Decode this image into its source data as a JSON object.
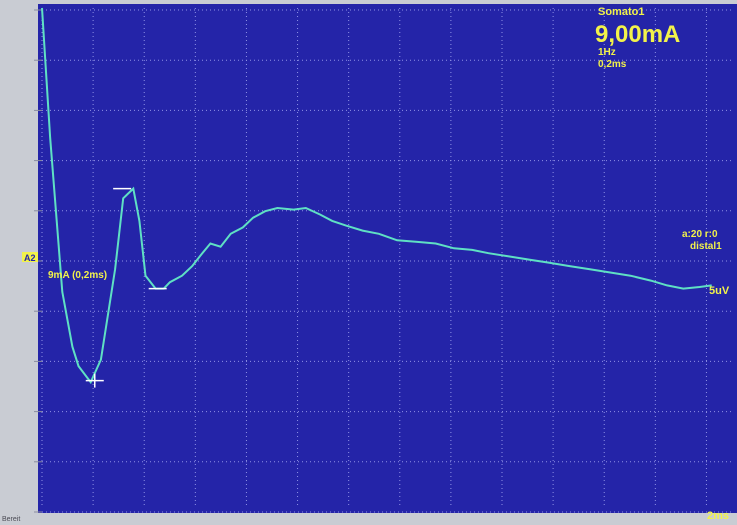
{
  "colors": {
    "bezel": "#c9ccd3",
    "plot_bg": "#2424a8",
    "grid": "#8f92e6",
    "trace": "#5fe0c4",
    "text": "#f2f24a",
    "status_text": "#4b4b55"
  },
  "header": {
    "mode": "Somato1",
    "intensity": "9,00mA",
    "rate": "1Hz",
    "duration": "0,2ms"
  },
  "channel": {
    "tag": "A2",
    "label": "9mA (0,2ms)",
    "averages": "a:20 r:0",
    "site": "distal1",
    "sensitivity": "5uV"
  },
  "timebase": "2ms",
  "status": "Bereit",
  "chart_data": {
    "type": "line",
    "title": "",
    "xlabel": "",
    "ylabel": "",
    "xlim": [
      0,
      34
    ],
    "ylim": [
      -7.5,
      8
    ],
    "grid": true,
    "x": [
      0,
      0.4,
      1.0,
      1.5,
      1.8,
      2.4,
      2.9,
      3.6,
      4.0,
      4.5,
      4.8,
      5.1,
      5.6,
      6.0,
      6.3,
      6.9,
      7.4,
      7.9,
      8.3,
      8.8,
      9.3,
      9.9,
      10.4,
      11.0,
      11.6,
      12.4,
      13.0,
      13.7,
      14.3,
      15.0,
      15.8,
      16.6,
      17.5,
      18.5,
      19.4,
      20.3,
      21.2,
      22.0,
      23.0,
      24.0,
      25.0,
      26.0,
      27.0,
      28.0,
      29.0,
      30.0,
      30.8,
      31.6,
      32.4,
      33.0
    ],
    "y": [
      8,
      4.0,
      -0.8,
      -2.5,
      -3.1,
      -3.6,
      -2.9,
      -0.1,
      2.1,
      2.4,
      1.4,
      -0.3,
      -0.7,
      -0.7,
      -0.5,
      -0.3,
      0.0,
      0.4,
      0.7,
      0.6,
      1.0,
      1.2,
      1.5,
      1.7,
      1.8,
      1.75,
      1.8,
      1.6,
      1.4,
      1.25,
      1.1,
      1.0,
      0.8,
      0.75,
      0.7,
      0.55,
      0.5,
      0.4,
      0.3,
      0.2,
      0.1,
      0.0,
      -0.1,
      -0.2,
      -0.3,
      -0.45,
      -0.6,
      -0.7,
      -0.65,
      -0.6
    ],
    "markers": [
      {
        "x": 2.6,
        "y": -3.55
      },
      {
        "x": 3.95,
        "y": 2.4
      },
      {
        "x": 5.7,
        "y": -0.7
      }
    ]
  }
}
